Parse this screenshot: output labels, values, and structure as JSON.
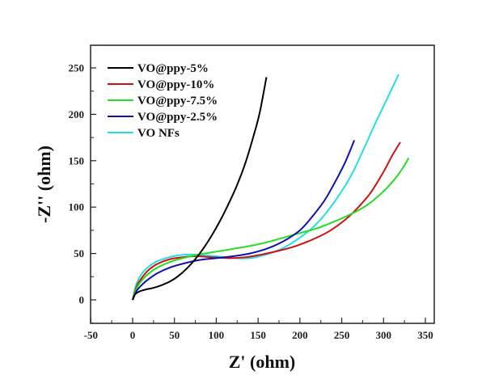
{
  "chart_data": {
    "type": "line",
    "title": "",
    "xlabel": "Z' (ohm)",
    "ylabel": "-Z'' (ohm)",
    "xlim": [
      -50,
      355
    ],
    "ylim": [
      -25,
      275
    ],
    "x_ticks": [
      -50,
      0,
      50,
      100,
      150,
      200,
      250,
      300,
      350
    ],
    "y_ticks": [
      0,
      50,
      100,
      150,
      200,
      250
    ],
    "grid": false,
    "legend_position": "top-left",
    "series": [
      {
        "name": "VO@ppy-5%",
        "color": "#000000",
        "x": [
          0,
          3,
          8,
          15,
          25,
          35,
          45,
          55,
          65,
          75,
          85,
          95,
          105,
          115,
          125,
          135,
          145,
          152,
          160
        ],
        "y": [
          0,
          6,
          9,
          11,
          13,
          16,
          20,
          26,
          34,
          44,
          56,
          70,
          86,
          104,
          124,
          148,
          178,
          202,
          240
        ]
      },
      {
        "name": "VO@ppy-10%",
        "color": "#d01010",
        "x": [
          0,
          5,
          12,
          20,
          30,
          45,
          60,
          75,
          95,
          115,
          135,
          155,
          175,
          195,
          215,
          235,
          255,
          270,
          285,
          300,
          310,
          320
        ],
        "y": [
          0,
          15,
          25,
          33,
          39,
          44,
          46,
          47,
          46,
          45,
          46,
          49,
          53,
          58,
          65,
          74,
          87,
          100,
          116,
          138,
          155,
          170
        ]
      },
      {
        "name": "VO@ppy-7.5%",
        "color": "#22dd22",
        "x": [
          0,
          5,
          12,
          20,
          30,
          45,
          60,
          80,
          100,
          120,
          140,
          160,
          180,
          200,
          220,
          240,
          260,
          280,
          300,
          315,
          325,
          330
        ],
        "y": [
          0,
          13,
          22,
          29,
          35,
          41,
          45,
          49,
          52,
          55,
          58,
          62,
          67,
          72,
          77,
          84,
          92,
          102,
          117,
          132,
          145,
          153
        ]
      },
      {
        "name": "VO@ppy-2.5%",
        "color": "#1010b0",
        "x": [
          0,
          5,
          12,
          20,
          30,
          45,
          60,
          80,
          100,
          120,
          140,
          160,
          180,
          200,
          215,
          230,
          245,
          255,
          265
        ],
        "y": [
          0,
          10,
          17,
          23,
          29,
          35,
          39,
          43,
          45,
          47,
          50,
          55,
          63,
          75,
          90,
          108,
          132,
          150,
          172
        ]
      },
      {
        "name": "VO NFs",
        "color": "#20e0e0",
        "x": [
          0,
          4,
          10,
          18,
          28,
          40,
          55,
          70,
          85,
          100,
          120,
          140,
          160,
          180,
          200,
          220,
          240,
          260,
          275,
          290,
          305,
          318
        ],
        "y": [
          0,
          16,
          27,
          35,
          41,
          45,
          48,
          49,
          48,
          47,
          45,
          45,
          49,
          56,
          67,
          82,
          104,
          132,
          160,
          190,
          218,
          243
        ]
      }
    ]
  }
}
